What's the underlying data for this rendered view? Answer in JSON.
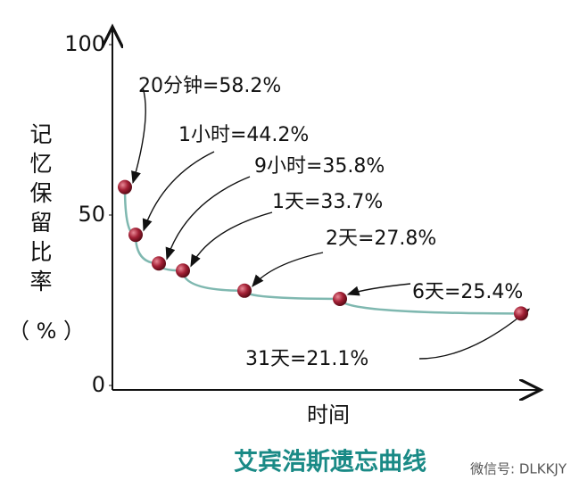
{
  "chart_data": {
    "type": "line",
    "title": "艾宾浩斯遗忘曲线",
    "xlabel": "时间",
    "ylabel": "记忆保留比率",
    "yunit": "（ % ）",
    "categories": [
      null,
      null,
      null,
      null,
      null,
      null,
      null
    ],
    "values": [
      58.2,
      44.2,
      35.8,
      33.7,
      27.8,
      25.4,
      21.1
    ],
    "value_labels": [
      "20分钟=58.2%",
      "1小时=44.2%",
      "9小时=35.8%",
      "1天=33.7%",
      "2天=27.8%",
      "6天=25.4%",
      "31天=21.1%"
    ],
    "color": "#7fb8b0",
    "marker_color": "#8b1a2b",
    "title_color": "#1a8a86",
    "ylim": [
      0,
      100
    ],
    "yticks": [
      0,
      50,
      100
    ],
    "watermark": "微信号: DLKKJY"
  }
}
